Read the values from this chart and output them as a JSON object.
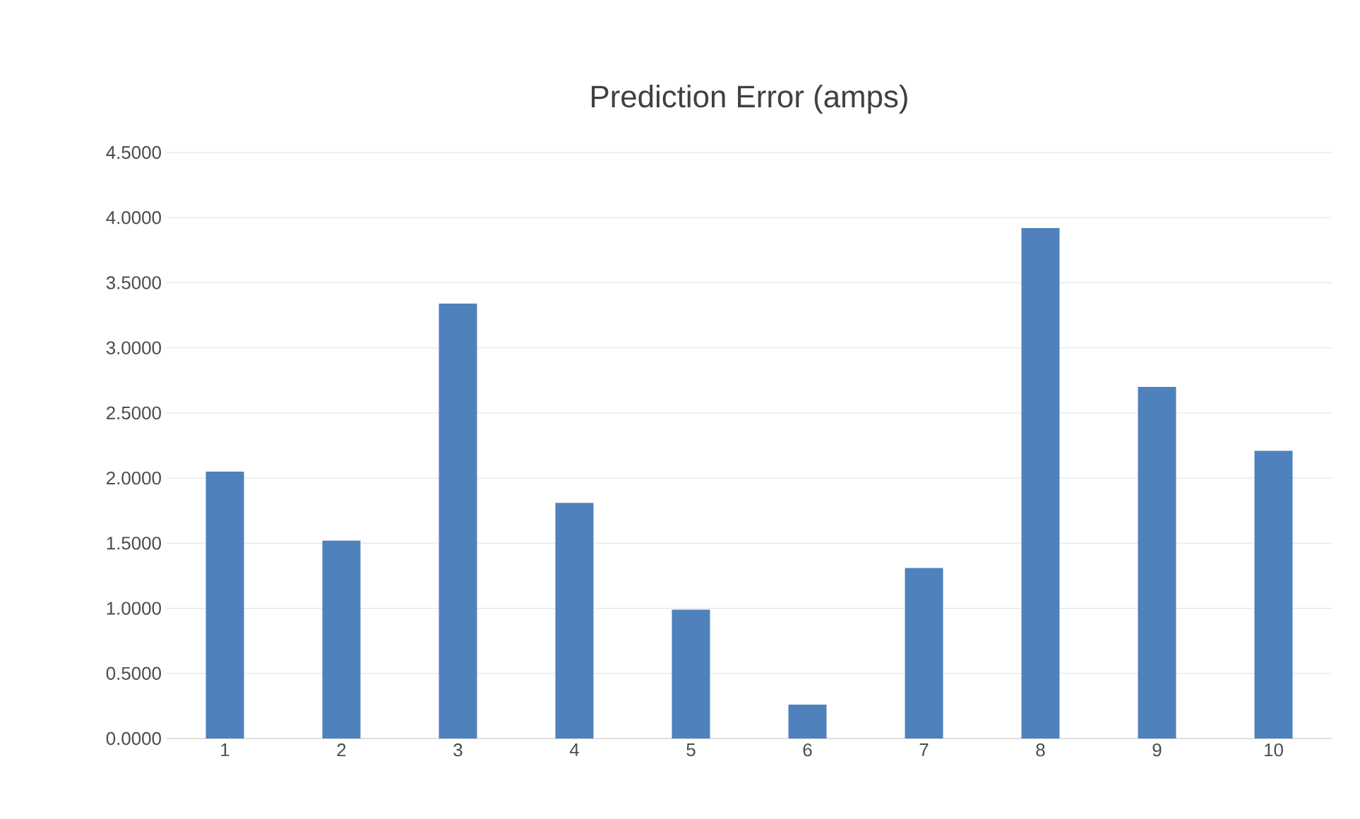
{
  "chart_data": {
    "type": "bar",
    "title": "Prediction Error (amps)",
    "categories": [
      "1",
      "2",
      "3",
      "4",
      "5",
      "6",
      "7",
      "8",
      "9",
      "10"
    ],
    "values": [
      2.05,
      1.52,
      3.34,
      1.81,
      0.99,
      0.26,
      1.31,
      3.92,
      2.7,
      2.21
    ],
    "color": "#4f81bd",
    "ylim": [
      0,
      4.5
    ],
    "yticks": [
      {
        "value": 0,
        "label": "0.0000"
      },
      {
        "value": 0.5,
        "label": "0.5000"
      },
      {
        "value": 1,
        "label": "1.0000"
      },
      {
        "value": 1.5,
        "label": "1.5000"
      },
      {
        "value": 2,
        "label": "2.0000"
      },
      {
        "value": 2.5,
        "label": "2.5000"
      },
      {
        "value": 3,
        "label": "3.0000"
      },
      {
        "value": 3.5,
        "label": "3.5000"
      },
      {
        "value": 4,
        "label": "4.0000"
      },
      {
        "value": 4.5,
        "label": "4.5000"
      }
    ],
    "grid": "y"
  }
}
